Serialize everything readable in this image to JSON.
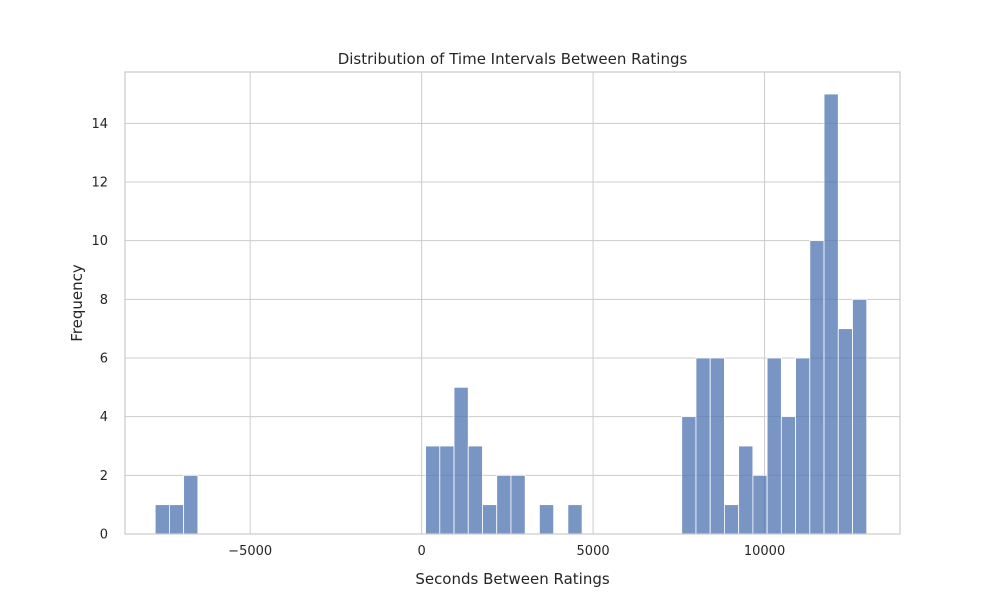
{
  "chart_data": {
    "type": "bar",
    "title": "Distribution of Time Intervals Between Ratings",
    "xlabel": "Seconds Between Ratings",
    "ylabel": "Frequency",
    "xlim": [
      -8650,
      13950
    ],
    "ylim": [
      0,
      15.75
    ],
    "grid": true,
    "x_ticks": [
      {
        "value": -5000,
        "label": "−5000"
      },
      {
        "value": 0,
        "label": "0"
      },
      {
        "value": 5000,
        "label": "5000"
      },
      {
        "value": 10000,
        "label": "10000"
      }
    ],
    "y_ticks": [
      {
        "value": 0,
        "label": "0"
      },
      {
        "value": 2,
        "label": "2"
      },
      {
        "value": 4,
        "label": "4"
      },
      {
        "value": 6,
        "label": "6"
      },
      {
        "value": 8,
        "label": "8"
      },
      {
        "value": 10,
        "label": "10"
      },
      {
        "value": 12,
        "label": "12"
      },
      {
        "value": 14,
        "label": "14"
      }
    ],
    "bin_start": -7770,
    "bin_width": 415,
    "values": [
      1,
      1,
      2,
      0,
      0,
      0,
      0,
      0,
      0,
      0,
      0,
      0,
      0,
      0,
      0,
      0,
      0,
      0,
      0,
      3,
      3,
      5,
      3,
      1,
      2,
      2,
      0,
      1,
      0,
      1,
      0,
      0,
      0,
      0,
      0,
      0,
      0,
      4,
      6,
      6,
      1,
      3,
      2,
      6,
      4,
      6,
      10,
      15,
      7,
      8
    ],
    "bar_color": "#4c72b0"
  }
}
